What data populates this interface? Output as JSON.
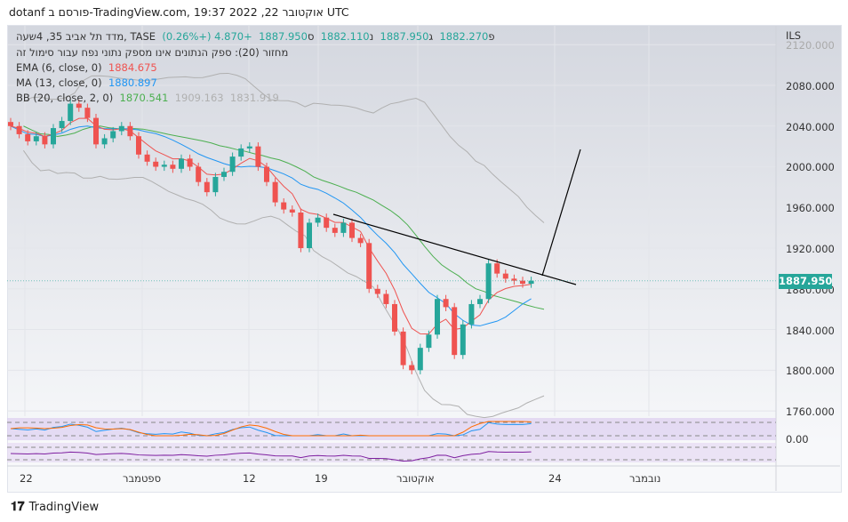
{
  "header": {
    "title": "dotanf פורסם ב-TradingView.com, 19:37 2022 ,22 אוקטובר UTC"
  },
  "legend": {
    "symbol": "מדד תל אביב 35, 4שעה, TASE",
    "open_label": "פ",
    "open": "1882.270",
    "high_label": "ג",
    "high": "1887.950",
    "low_label": "נ",
    "low": "1882.110",
    "close_label": "ס",
    "close": "1887.950",
    "change": "+4.870 (+0.26%)",
    "volume_note": "מחזור (20): ספק הנתונים אינו מספק נתוני נפח עבור סימול זה",
    "ema_label": "EMA (6, close, 0)",
    "ema_value": "1884.675",
    "ma_label": "MA (13, close, 0)",
    "ma_value": "1880.897",
    "bb_label": "BB (20, close, 2, 0)",
    "bb_basis": "1870.541",
    "bb_upper": "1909.163",
    "bb_lower": "1831.919"
  },
  "price_axis": {
    "currency": "ILS",
    "ticks": [
      "2120.000",
      "2080.000",
      "2040.000",
      "2000.000",
      "1960.000",
      "1920.000",
      "1880.000",
      "1840.000",
      "1800.000",
      "1760.000"
    ],
    "current_price": "1887.950",
    "osc_tick": "0.00"
  },
  "time_axis": [
    "22",
    "ספטמבר",
    "12",
    "19",
    "אוקטובר",
    "24",
    "נובמבר"
  ],
  "footer": {
    "brand": "TradingView"
  },
  "colors": {
    "up": "#26a69a",
    "down": "#ef5350",
    "ema": "#ef5350",
    "ma": "#2196f3",
    "bb_basis": "#4caf50",
    "bb_band": "#b0b0b0"
  },
  "chart_data": {
    "type": "candlestick",
    "timeframe": "4h",
    "ylim": [
      1760,
      2120
    ],
    "closes": [
      2040,
      2032,
      2025,
      2030,
      2022,
      2038,
      2045,
      2062,
      2058,
      2048,
      2022,
      2028,
      2035,
      2040,
      2030,
      2012,
      2005,
      2000,
      2002,
      1998,
      2008,
      2000,
      1985,
      1975,
      1990,
      1995,
      2010,
      2018,
      2020,
      2000,
      1985,
      1965,
      1958,
      1955,
      1920,
      1945,
      1950,
      1940,
      1935,
      1945,
      1930,
      1925,
      1880,
      1875,
      1865,
      1838,
      1805,
      1800,
      1822,
      1835,
      1870,
      1862,
      1815,
      1845,
      1865,
      1870,
      1905,
      1895,
      1890,
      1888,
      1885,
      1887.95
    ]
  }
}
